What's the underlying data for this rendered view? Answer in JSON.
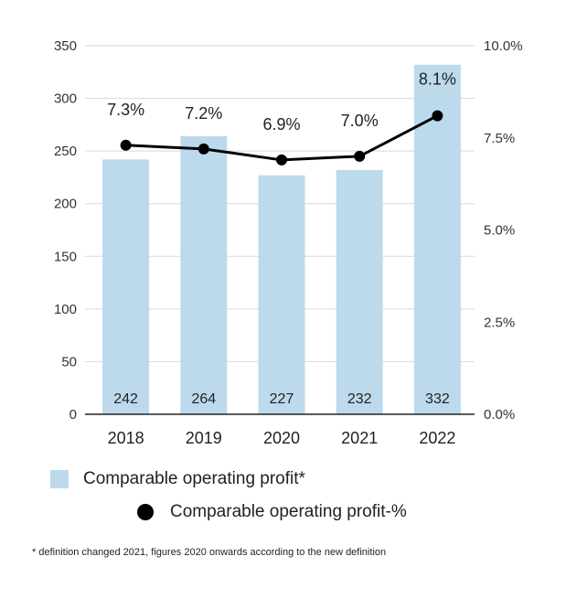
{
  "chart_data": {
    "type": "bar",
    "categories": [
      "2018",
      "2019",
      "2020",
      "2021",
      "2022"
    ],
    "series": [
      {
        "name": "Comparable operating profit*",
        "type": "bar",
        "axis": "left",
        "values": [
          242,
          264,
          227,
          232,
          332
        ],
        "labels": [
          "242",
          "264",
          "227",
          "232",
          "332"
        ]
      },
      {
        "name": "Comparable operating profit-%",
        "type": "line",
        "axis": "right",
        "values": [
          7.3,
          7.2,
          6.9,
          7.0,
          8.1
        ],
        "labels": [
          "7.3%",
          "7.2%",
          "6.9%",
          "7.0%",
          "8.1%"
        ]
      }
    ],
    "y_left": {
      "range": [
        0,
        350
      ],
      "ticks": [
        "350",
        "300",
        "250",
        "200",
        "150",
        "100",
        "50",
        "0"
      ],
      "tick_values": [
        350,
        300,
        250,
        200,
        150,
        100,
        50,
        0
      ]
    },
    "y_right": {
      "range": [
        0,
        10
      ],
      "ticks": [
        "10.0%",
        "7.5%",
        "5.0%",
        "2.5%",
        "0.0%"
      ],
      "tick_values": [
        10,
        7.5,
        5,
        2.5,
        0
      ]
    },
    "grid": true,
    "legend_position": "bottom",
    "footnote": "* definition changed 2021, figures 2020 onwards according to the new definition"
  },
  "colors": {
    "bar": "#bcdaec",
    "line": "#000000",
    "grid": "#d9d9d9",
    "axis": "#222222"
  }
}
